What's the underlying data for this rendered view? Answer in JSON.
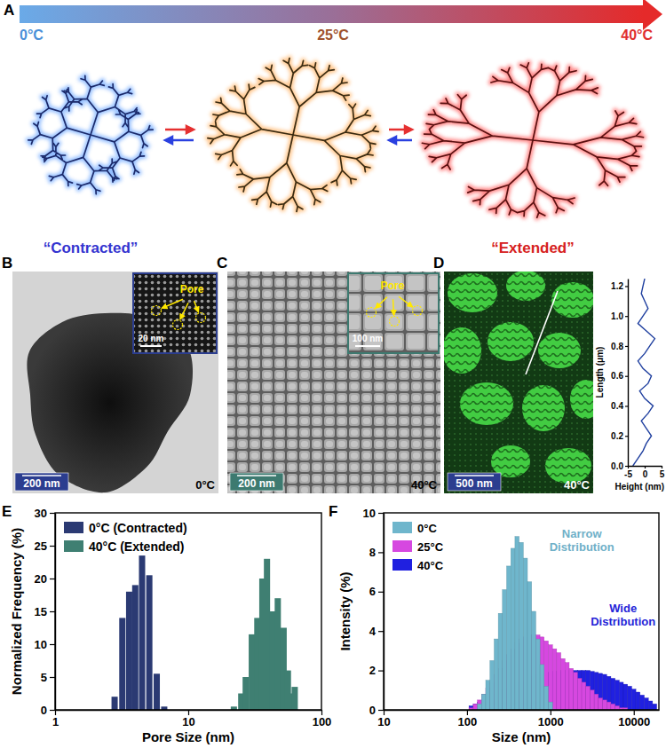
{
  "chart_data": [
    {
      "type": "bar",
      "x_label": "Pore Size (nm)",
      "y_label": "Normalized Frequency (%)",
      "log": "x",
      "xlim": [
        1,
        100
      ],
      "xticks": [
        1,
        10,
        100
      ],
      "ylim": [
        0,
        30
      ],
      "yticks": [
        0,
        5,
        10,
        15,
        20,
        25,
        30
      ],
      "legend": "upper left",
      "series": [
        {
          "name": "0°C (Contracted)",
          "color": "#2b3a73",
          "x": [
            2.8,
            3.2,
            3.6,
            4.0,
            4.5,
            5.1,
            5.8,
            6.6
          ],
          "values": [
            2,
            14,
            18,
            19,
            23.5,
            20.5,
            5.5,
            0.5
          ]
        },
        {
          "name": "40°C (Extended)",
          "color": "#3f7f72",
          "x": [
            22,
            25,
            27,
            30,
            33,
            36,
            39,
            43,
            47,
            52,
            56,
            60,
            63
          ],
          "values": [
            0.5,
            2.5,
            5,
            11.5,
            14,
            20,
            23,
            15,
            17,
            12.5,
            6,
            2.5,
            3.5
          ]
        }
      ]
    },
    {
      "type": "bar",
      "x_label": "Size (nm)",
      "y_label": "Intensity (%)",
      "log": "x",
      "xlim": [
        10,
        20000
      ],
      "xticks": [
        10,
        100,
        1000,
        10000
      ],
      "ylim": [
        0,
        10
      ],
      "yticks": [
        0,
        2,
        4,
        6,
        8,
        10
      ],
      "legend": "upper left",
      "x": [
        112,
        126,
        141,
        158,
        178,
        200,
        224,
        251,
        282,
        316,
        355,
        398,
        447,
        501,
        562,
        631,
        708,
        794,
        891,
        1000,
        1122,
        1259,
        1413,
        1585,
        1778,
        1995,
        2239,
        2512,
        2818,
        3162,
        3548,
        3981,
        4467,
        5012,
        5623,
        6310,
        7079,
        7943,
        8913,
        10000,
        11220,
        12589,
        14125,
        15849,
        17783
      ],
      "series": [
        {
          "name": "0°C",
          "color": "#6fb6cc",
          "values": [
            0,
            0,
            0.3,
            0.8,
            1.5,
            2.5,
            3.6,
            4.9,
            6.1,
            7.3,
            8.2,
            8.8,
            8.5,
            7.7,
            6.5,
            5.0,
            3.6,
            2.3,
            1.2,
            0.4,
            0,
            0,
            0,
            0,
            0,
            0,
            0,
            0,
            0,
            0,
            0,
            0,
            0,
            0,
            0,
            0,
            0,
            0,
            0,
            0,
            0,
            0,
            0,
            0,
            0
          ]
        },
        {
          "name": "25°C",
          "color": "#d648e0",
          "values": [
            0.1,
            0.3,
            0.5,
            0.8,
            1.1,
            1.4,
            1.8,
            2.1,
            2.5,
            2.8,
            3.1,
            3.4,
            3.6,
            3.7,
            3.8,
            3.8,
            3.8,
            3.7,
            3.5,
            3.3,
            3.1,
            2.9,
            2.6,
            2.4,
            2.1,
            1.9,
            1.6,
            1.4,
            1.2,
            1.0,
            0.8,
            0.6,
            0.5,
            0.4,
            0.3,
            0.2,
            0.1,
            0.1,
            0,
            0,
            0,
            0,
            0,
            0,
            0
          ]
        },
        {
          "name": "40°C",
          "color": "#2020e0",
          "values": [
            0.2,
            0.3,
            0.4,
            0.5,
            0.6,
            0.7,
            0.8,
            0.9,
            1.0,
            1.1,
            1.2,
            1.3,
            1.4,
            1.5,
            1.6,
            1.7,
            1.8,
            1.85,
            1.9,
            1.9,
            1.95,
            1.95,
            2.0,
            2.0,
            2.0,
            2.0,
            2.0,
            2.0,
            2.0,
            1.95,
            1.9,
            1.85,
            1.8,
            1.7,
            1.6,
            1.5,
            1.4,
            1.3,
            1.2,
            1.05,
            0.9,
            0.75,
            0.6,
            0.45,
            0.3
          ]
        }
      ],
      "annotations": [
        {
          "text": "Narrow Distribution",
          "color": "#6fb0c8"
        },
        {
          "text": "Wide Distribution",
          "color": "#2525d8"
        }
      ]
    },
    {
      "type": "line",
      "x_label": "Height (nm)",
      "y_label": "Length (μm)",
      "xlim": [
        -5,
        5
      ],
      "xticks": [
        -5,
        0,
        5
      ],
      "ylim": [
        0,
        1.25
      ],
      "yticks": [
        {
          "value": 0,
          "label": "0.0"
        },
        0.2,
        0.4,
        0.6,
        0.8,
        {
          "value": 1,
          "label": "1.0"
        },
        1.2
      ],
      "color": "#1f3f9f",
      "x": [
        -3.5,
        -2,
        -0.5,
        0.5,
        2,
        0.5,
        -1,
        1,
        2.5,
        0,
        -1.5,
        1,
        2,
        -0.5,
        -2,
        0,
        1.5,
        3,
        0.5,
        -2,
        -0.5,
        1,
        0,
        -1,
        -0.5,
        0
      ],
      "values": [
        0,
        0.05,
        0.1,
        0.15,
        0.2,
        0.25,
        0.3,
        0.35,
        0.4,
        0.45,
        0.5,
        0.55,
        0.6,
        0.65,
        0.7,
        0.75,
        0.8,
        0.85,
        0.9,
        0.95,
        1,
        1.05,
        1.1,
        1.15,
        1.2,
        1.25
      ]
    }
  ],
  "figure": {
    "panel_labels": [
      "A",
      "B",
      "C",
      "D",
      "E",
      "F"
    ],
    "schematic": {
      "temperatures": [
        "0°C",
        "25°C",
        "40°C"
      ],
      "states": [
        "“Contracted”",
        "“Extended”"
      ]
    },
    "tem_0C": {
      "label": "0°C",
      "scale_bar": "200 nm",
      "inset_scale_bar": "20 nm",
      "pore": "Pore"
    },
    "tem_40C": {
      "label": "40°C",
      "scale_bar": "200 nm",
      "inset_scale_bar": "100 nm",
      "pore": "Pore"
    },
    "afm_40C": {
      "label": "40°C",
      "scale_bar": "500 nm"
    }
  }
}
